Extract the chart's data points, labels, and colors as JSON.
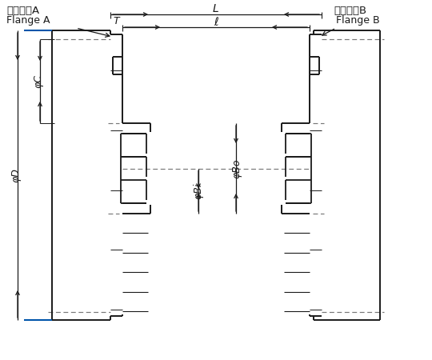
{
  "bg_color": "#ffffff",
  "line_color": "#1a1a1a",
  "blue_color": "#0055aa",
  "dash_color": "#777777",
  "flange_A_label": "フランジA",
  "flange_A_sub": "Flange A",
  "flange_B_label": "フランジB",
  "flange_B_sub": "Flange B",
  "dim_L": "L",
  "dim_ell": "ℓ",
  "dim_T": "T",
  "dim_D": "φD",
  "dim_C": "φC",
  "dim_Bi": "φBi",
  "dim_Bo": "φBo"
}
